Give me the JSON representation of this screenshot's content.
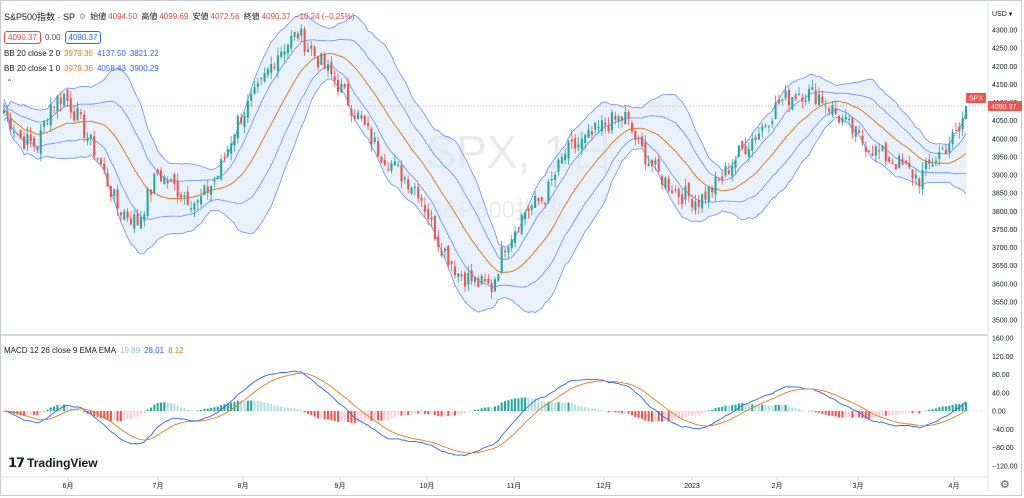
{
  "header": {
    "symbol_title": "S&P500指数 · SP",
    "ohlc": {
      "open_label": "始値",
      "open": "4094.50",
      "high_label": "高値",
      "high": "4099.69",
      "low_label": "安値",
      "low": "4072.56",
      "close_label": "終値",
      "close": "4090.37",
      "change": "−10.24 (−0.25%)"
    },
    "bid": "4090.37",
    "spread": "0.00",
    "ask": "4090.37"
  },
  "indicators": {
    "bb2": {
      "label": "BB 20 close 2 0",
      "basis": "3979.36",
      "upper": "4137.50",
      "lower": "3821.22"
    },
    "bb1": {
      "label": "BB 20 close 1 0",
      "basis": "3979.36",
      "upper": "4058.43",
      "lower": "3900.29"
    },
    "macd": {
      "label": "MACD 12 26 close 9 EMA EMA",
      "hist": "19.89",
      "macd": "28.01",
      "signal": "8.12"
    }
  },
  "axis": {
    "currency": "USD",
    "price_ticks": [
      "4300.00",
      "4250.00",
      "4200.00",
      "4150.00",
      "4100.00",
      "4050.00",
      "4000.00",
      "3950.00",
      "3900.00",
      "3850.00",
      "3800.00",
      "3750.00",
      "3700.00",
      "3650.00",
      "3600.00",
      "3550.00",
      "3500.00"
    ],
    "macd_ticks": [
      "160.00",
      "120.00",
      "80.00",
      "40.00",
      "0.00",
      "−40.00",
      "−80.00",
      "−120.00"
    ],
    "time_ticks": [
      "6月",
      "7月",
      "8月",
      "9月",
      "10月",
      "11月",
      "12月",
      "2023",
      "2月",
      "3月",
      "4月"
    ],
    "last_price_tag": "4090.37",
    "symbol_tag": "SPX"
  },
  "watermark": {
    "main": "SPX, 1日",
    "sub": "S&P500指数"
  },
  "branding": {
    "logo_text": "TradingView"
  },
  "colors": {
    "up": "#26a69a",
    "down": "#ef5350",
    "basis": "#e07c1f",
    "band": "#2962ff",
    "band_fill": "#dbe7fa",
    "hist_up": "#26a69a",
    "hist_up_light": "#b2dfdb",
    "hist_down": "#ef5350",
    "hist_down_light": "#ffcdd2",
    "macd_line": "#2962ff",
    "signal_line": "#e07c1f"
  },
  "chart_data": {
    "type": "candlestick",
    "title": "SPX, 1日",
    "ylabel": "USD",
    "ylim": [
      3480,
      4340
    ],
    "macd_ylim": [
      -140,
      180
    ],
    "x_categories": [
      "6月",
      "7月",
      "8月",
      "9月",
      "10月",
      "11月",
      "12月",
      "2023",
      "2月",
      "3月",
      "4月"
    ],
    "anchors": [
      [
        0,
        4080
      ],
      [
        5,
        4000
      ],
      [
        10,
        3980
      ],
      [
        14,
        4095
      ],
      [
        18,
        4120
      ],
      [
        22,
        4060
      ],
      [
        28,
        3950
      ],
      [
        34,
        3810
      ],
      [
        40,
        3770
      ],
      [
        46,
        3905
      ],
      [
        52,
        3860
      ],
      [
        58,
        3820
      ],
      [
        64,
        3900
      ],
      [
        70,
        4050
      ],
      [
        76,
        4130
      ],
      [
        82,
        4240
      ],
      [
        88,
        4290
      ],
      [
        94,
        4220
      ],
      [
        100,
        4150
      ],
      [
        106,
        4060
      ],
      [
        112,
        3970
      ],
      [
        118,
        3910
      ],
      [
        124,
        3860
      ],
      [
        130,
        3720
      ],
      [
        136,
        3630
      ],
      [
        142,
        3600
      ],
      [
        146,
        3590
      ],
      [
        150,
        3710
      ],
      [
        156,
        3800
      ],
      [
        162,
        3840
      ],
      [
        168,
        3960
      ],
      [
        174,
        3995
      ],
      [
        180,
        4040
      ],
      [
        186,
        4060
      ],
      [
        190,
        3980
      ],
      [
        196,
        3900
      ],
      [
        202,
        3850
      ],
      [
        208,
        3830
      ],
      [
        214,
        3880
      ],
      [
        220,
        3960
      ],
      [
        226,
        4020
      ],
      [
        232,
        4100
      ],
      [
        238,
        4130
      ],
      [
        244,
        4120
      ],
      [
        250,
        4060
      ],
      [
        256,
        4000
      ],
      [
        262,
        3960
      ],
      [
        268,
        3930
      ],
      [
        274,
        3890
      ],
      [
        280,
        3960
      ],
      [
        286,
        4020
      ],
      [
        288,
        4090
      ]
    ]
  }
}
